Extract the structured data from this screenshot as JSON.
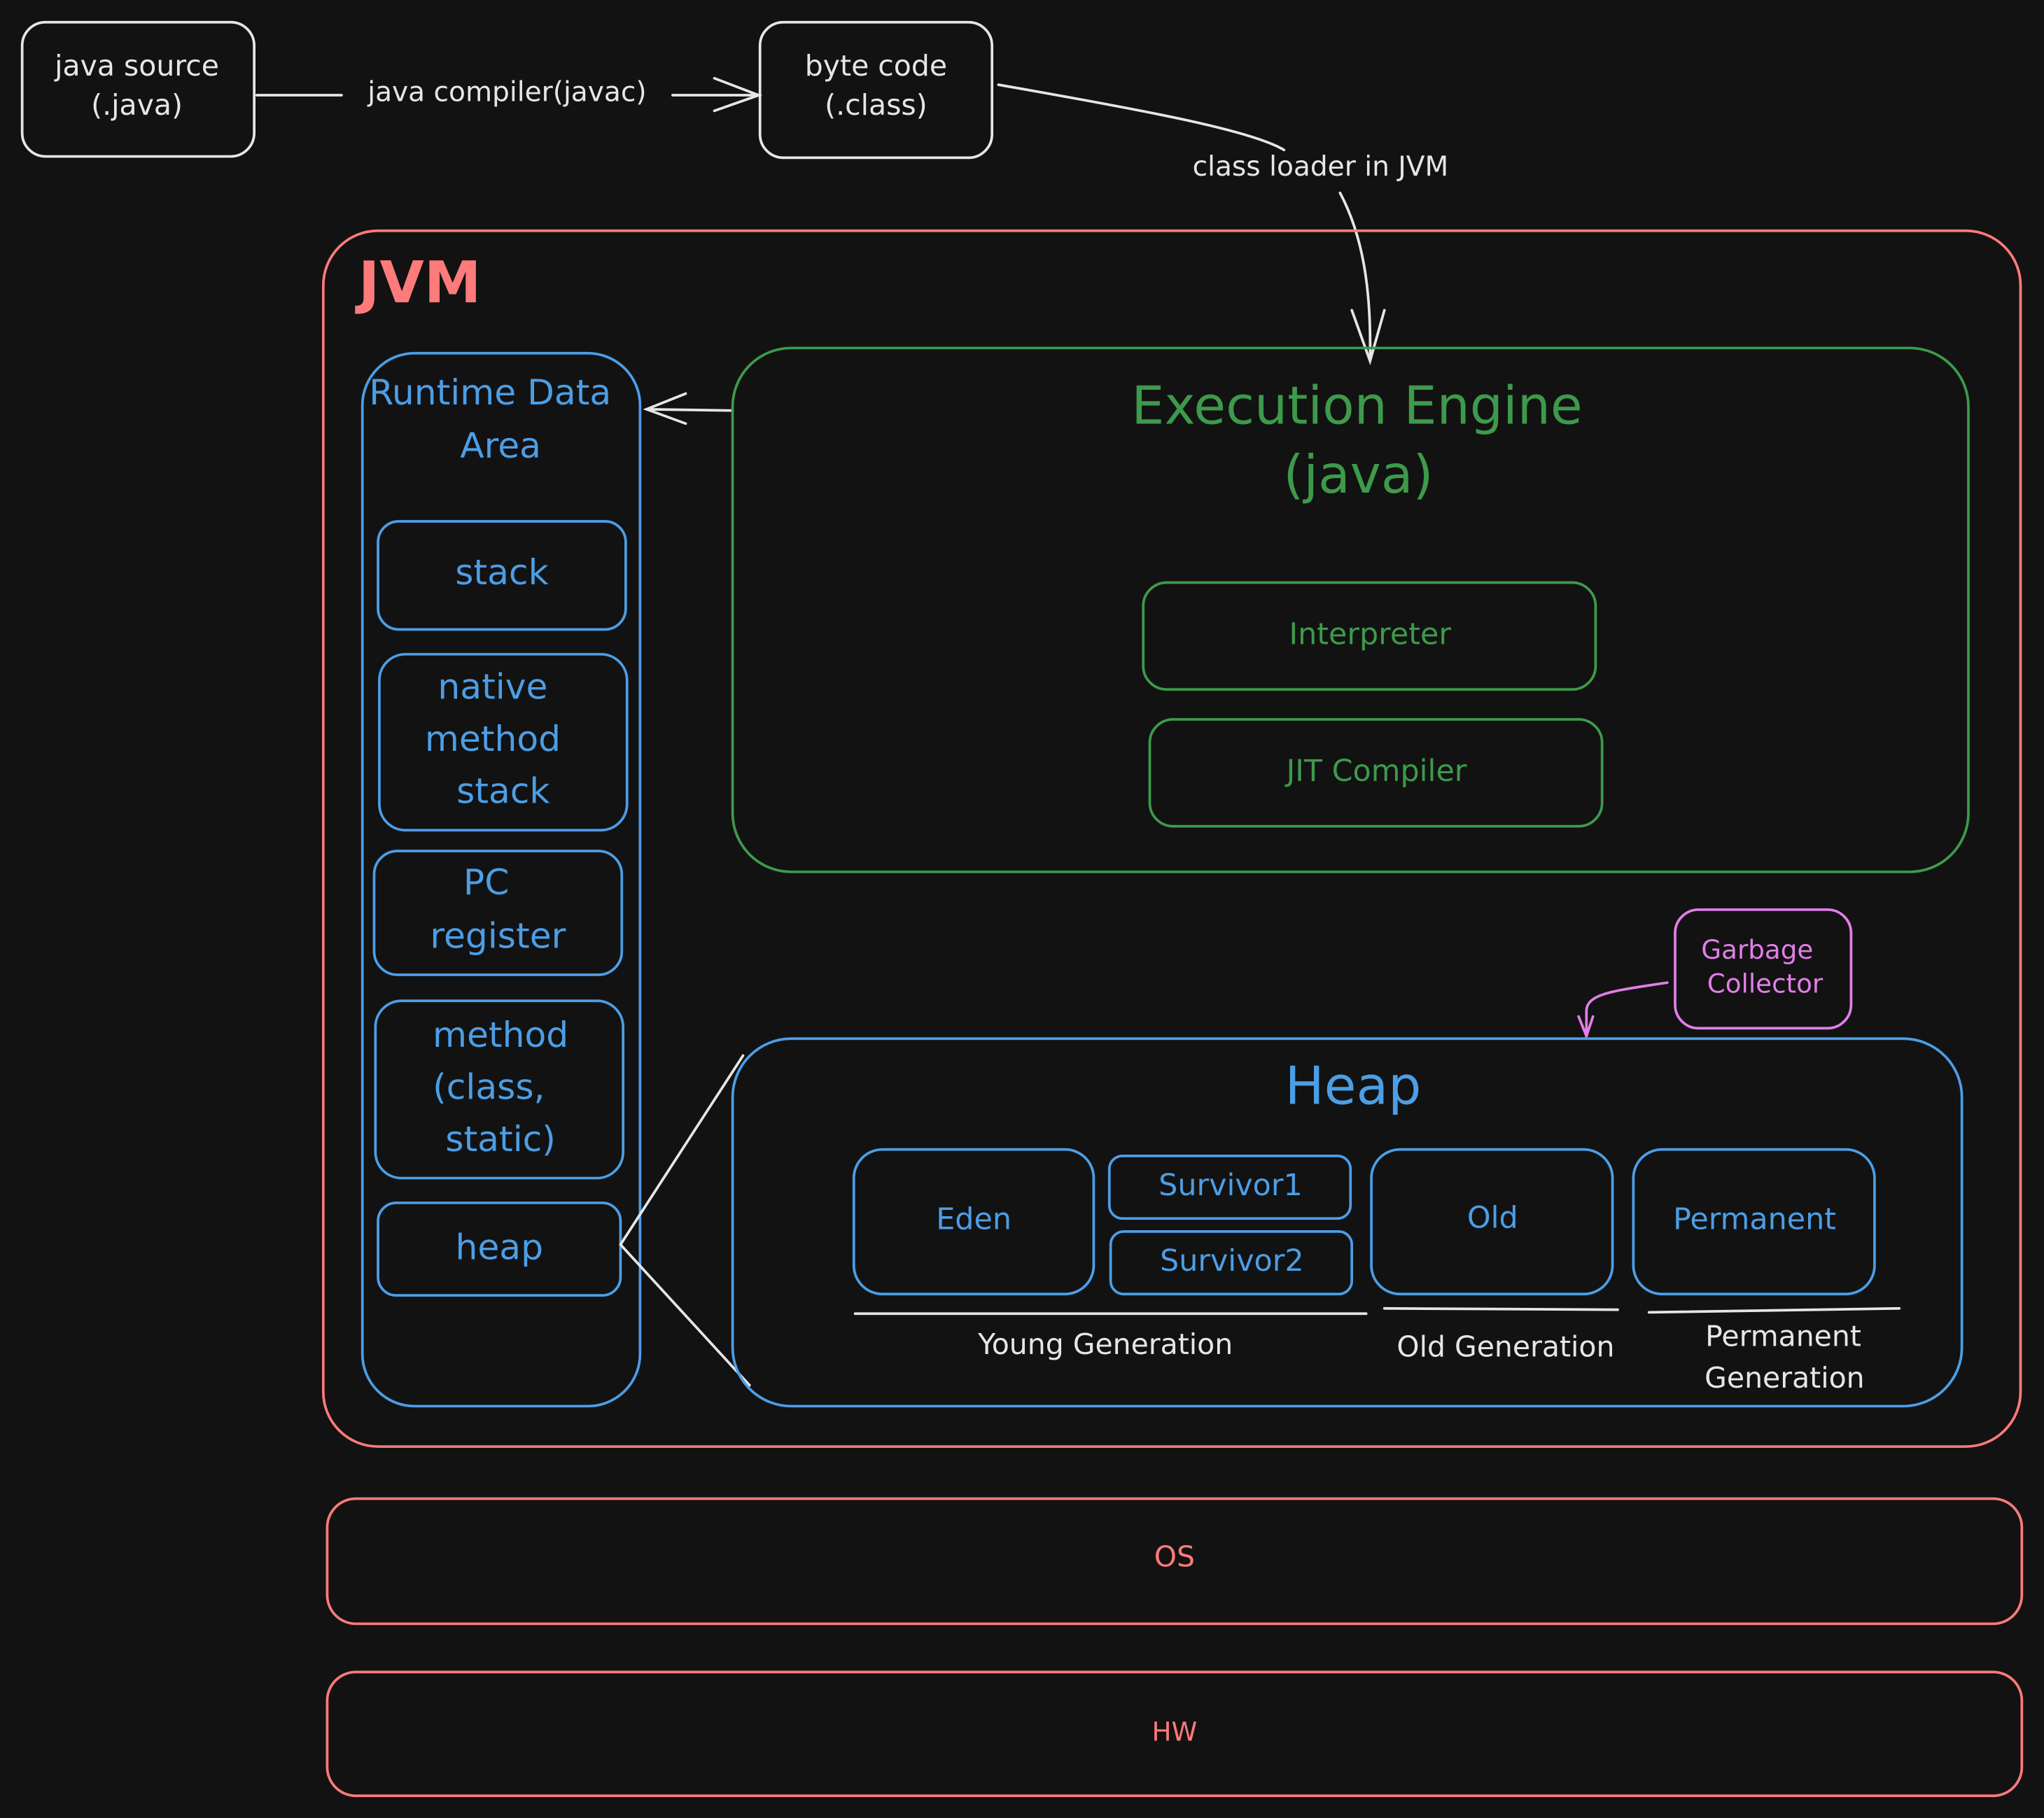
{
  "colors": {
    "background": "#121212",
    "jvm": "#ff7a7a",
    "runtime": "#4c9ee6",
    "engine": "#3d9a4b",
    "gc": "#e27ee8",
    "source": "#e6e6e6"
  },
  "source": {
    "line1": "java source",
    "line2": "(.java)"
  },
  "compiler_label": "java compiler(javac)",
  "bytecode": {
    "line1": "byte code",
    "line2": "(.class)"
  },
  "classloader_label": "class loader in JVM",
  "jvm": {
    "title": "JVM"
  },
  "runtime": {
    "title_line1": "Runtime Data",
    "title_line2": "Area",
    "stack": "stack",
    "native": [
      "native",
      "method",
      "stack"
    ],
    "pc": [
      "PC",
      "register"
    ],
    "method": [
      "method",
      "(class,",
      "static)"
    ],
    "heap": "heap"
  },
  "engine": {
    "title_line1": "Execution Engine",
    "title_line2": "(java)",
    "interpreter": "Interpreter",
    "jit": "JIT Compiler"
  },
  "gc": {
    "line1": "Garbage",
    "line2": "Collector"
  },
  "heap": {
    "title": "Heap",
    "eden": "Eden",
    "survivor1": "Survivor1",
    "survivor2": "Survivor2",
    "old": "Old",
    "permanent": "Permanent",
    "young_gen": "Young Generation",
    "old_gen": "Old Generation",
    "perm_gen_line1": "Permanent",
    "perm_gen_line2": "Generation"
  },
  "os": "OS",
  "hw": "HW"
}
